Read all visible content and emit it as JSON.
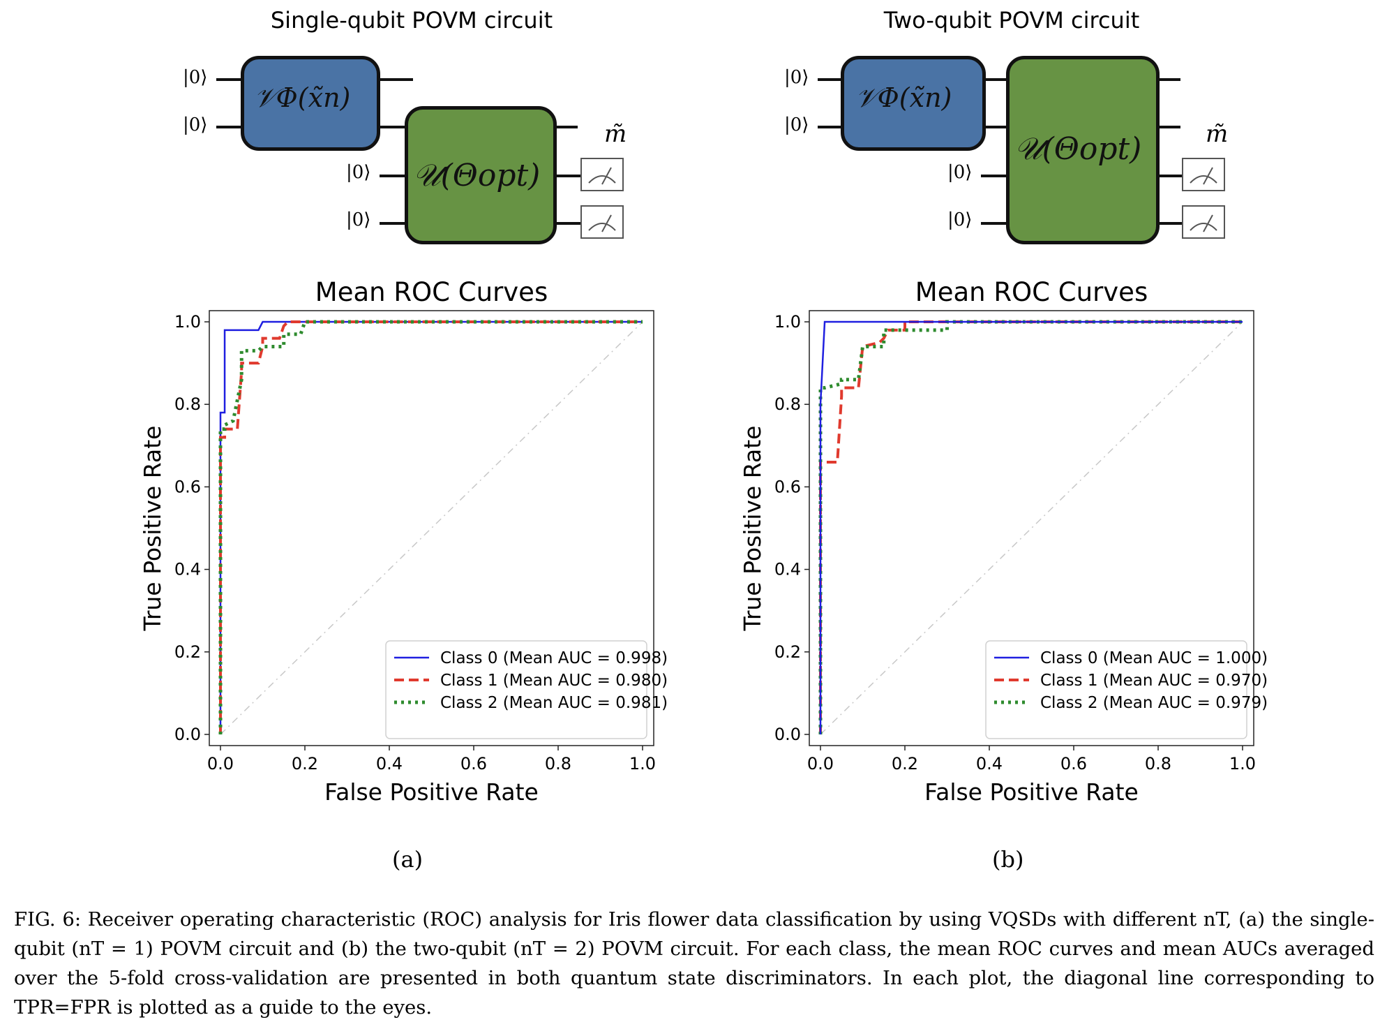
{
  "panels": [
    {
      "circuit": {
        "title": "Single-qubit POVM circuit",
        "kets": [
          "|0⟩",
          "|0⟩",
          "|0⟩",
          "|0⟩"
        ],
        "encoding_gate": "𝒱Φ(x̃n)",
        "unitary_gate": "𝒰(Θopt)",
        "measurement_label": "m̃"
      },
      "sublabel": "(a)",
      "chart_data": {
        "type": "line",
        "title": "Mean ROC Curves",
        "xlabel": "False Positive Rate",
        "ylabel": "True Positive Rate",
        "xlim": [
          0,
          1
        ],
        "ylim": [
          0,
          1
        ],
        "xticks": [
          "0.0",
          "0.2",
          "0.4",
          "0.6",
          "0.8",
          "1.0"
        ],
        "yticks": [
          "0.0",
          "0.2",
          "0.4",
          "0.6",
          "0.8",
          "1.0"
        ],
        "legend_position": "lower-right",
        "grid": false,
        "series": [
          {
            "name": "Class 0 (Mean AUC = 0.998)",
            "color": "#1f1fe0",
            "style": "solid",
            "x": [
              0,
              0.0,
              0.01,
              0.01,
              0.09,
              0.1,
              1.0
            ],
            "y": [
              0,
              0.78,
              0.78,
              0.98,
              0.98,
              1.0,
              1.0
            ]
          },
          {
            "name": "Class 1 (Mean AUC = 0.980)",
            "color": "#e03a2e",
            "style": "dashed",
            "x": [
              0,
              0.0,
              0.01,
              0.01,
              0.04,
              0.05,
              0.05,
              0.09,
              0.1,
              0.1,
              0.14,
              0.15,
              0.16,
              1.0
            ],
            "y": [
              0,
              0.72,
              0.72,
              0.74,
              0.74,
              0.88,
              0.9,
              0.9,
              0.94,
              0.96,
              0.96,
              0.99,
              1.0,
              1.0
            ]
          },
          {
            "name": "Class 2 (Mean AUC = 0.981)",
            "color": "#2e8b2e",
            "style": "dotted",
            "x": [
              0,
              0.0,
              0.01,
              0.01,
              0.03,
              0.05,
              0.05,
              0.09,
              0.1,
              0.1,
              0.15,
              0.15,
              0.19,
              0.2,
              1.0
            ],
            "y": [
              0,
              0.74,
              0.74,
              0.75,
              0.76,
              0.86,
              0.93,
              0.93,
              0.94,
              0.94,
              0.94,
              0.97,
              0.97,
              1.0,
              1.0
            ]
          },
          {
            "name": "",
            "color": "#c8c8c8",
            "style": "dashdot",
            "x": [
              0,
              1
            ],
            "y": [
              0,
              1
            ]
          }
        ]
      }
    },
    {
      "circuit": {
        "title": "Two-qubit POVM circuit",
        "kets": [
          "|0⟩",
          "|0⟩",
          "|0⟩",
          "|0⟩"
        ],
        "encoding_gate": "𝒱Φ(x̃n)",
        "unitary_gate": "𝒰(Θopt)",
        "measurement_label": "m̃"
      },
      "sublabel": "(b)",
      "chart_data": {
        "type": "line",
        "title": "Mean ROC Curves",
        "xlabel": "False Positive Rate",
        "ylabel": "True Positive Rate",
        "xlim": [
          0,
          1
        ],
        "ylim": [
          0,
          1
        ],
        "xticks": [
          "0.0",
          "0.2",
          "0.4",
          "0.6",
          "0.8",
          "1.0"
        ],
        "yticks": [
          "0.0",
          "0.2",
          "0.4",
          "0.6",
          "0.8",
          "1.0"
        ],
        "legend_position": "lower-right",
        "grid": false,
        "series": [
          {
            "name": "Class 1 (Mean AUC = 0.970)",
            "color": "#e03a2e",
            "style": "dashed",
            "x": [
              0,
              0.0,
              0.01,
              0.01,
              0.04,
              0.05,
              0.05,
              0.09,
              0.1,
              0.1,
              0.14,
              0.15,
              0.16,
              0.2,
              0.2,
              1.0
            ],
            "y": [
              0,
              0.66,
              0.66,
              0.66,
              0.66,
              0.82,
              0.84,
              0.84,
              0.94,
              0.94,
              0.95,
              0.96,
              0.98,
              0.98,
              1.0,
              1.0
            ]
          },
          {
            "name": "Class 2 (Mean AUC = 0.979)",
            "color": "#2e8b2e",
            "style": "dotted",
            "x": [
              0,
              0.0,
              0.01,
              0.01,
              0.05,
              0.05,
              0.09,
              0.1,
              0.15,
              0.15,
              0.3,
              0.3,
              1.0
            ],
            "y": [
              0,
              0.84,
              0.84,
              0.84,
              0.85,
              0.86,
              0.86,
              0.94,
              0.94,
              0.98,
              0.98,
              1.0,
              1.0
            ]
          },
          {
            "name": "Class 0 (Mean AUC = 1.000)",
            "color": "#1f1fe0",
            "style": "solid",
            "x": [
              0,
              0.0,
              0.01,
              1.0
            ],
            "y": [
              0,
              0.8,
              1.0,
              1.0
            ]
          },
          {
            "name": "",
            "color": "#c8c8c8",
            "style": "dashdot",
            "x": [
              0,
              1
            ],
            "y": [
              0,
              1
            ]
          }
        ]
      }
    }
  ],
  "legend_order": [
    [
      0,
      1,
      2
    ],
    [
      2,
      0,
      1
    ]
  ],
  "caption": {
    "label": "FIG. 6:",
    "text": "Receiver operating characteristic (ROC) analysis for Iris flower data classification by using VQSDs with different nT, (a) the single-qubit (nT = 1) POVM circuit and (b) the two-qubit (nT = 2) POVM circuit. For each class, the mean ROC curves and mean AUCs averaged over the 5-fold cross-validation are presented in both quantum state discriminators. In each plot, the diagonal line corresponding to TPR=FPR is plotted as a guide to the eyes."
  }
}
